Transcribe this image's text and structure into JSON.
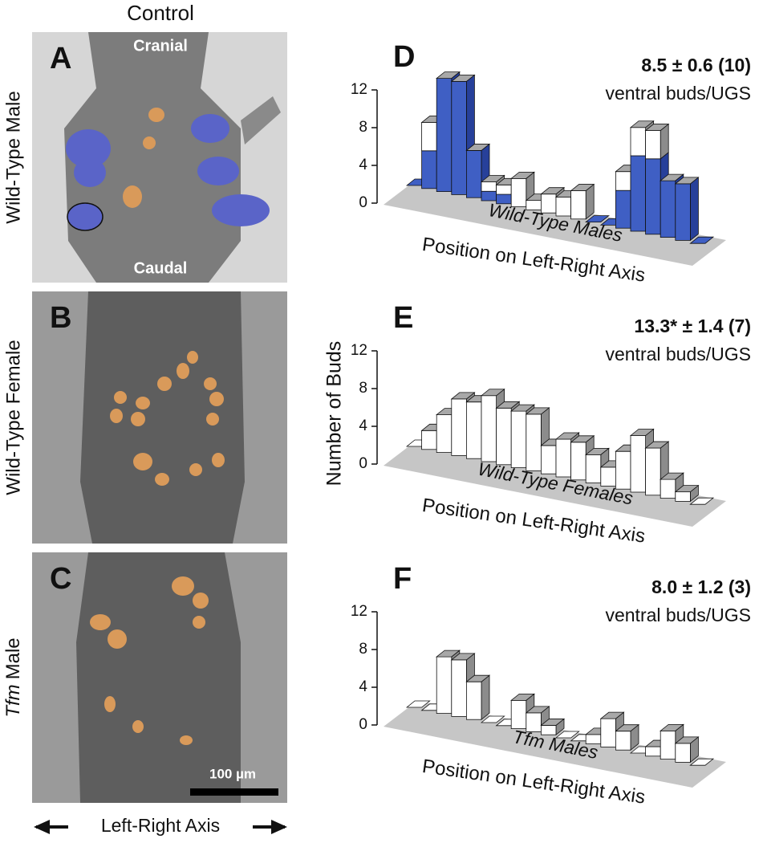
{
  "column_title": "Control",
  "image_panels": [
    {
      "letter": "A",
      "row_label": "Wild-Type Male",
      "top_label": "Cranial",
      "bottom_label": "Caudal"
    },
    {
      "letter": "B",
      "row_label": "Wild-Type Female"
    },
    {
      "letter": "C",
      "row_label_italic": "Tfm",
      "row_label": "Male",
      "scale_bar": "100 µm"
    }
  ],
  "axis_caption": "Left-Right Axis",
  "y_axis_label": "Number of Buds",
  "chart_data": [
    {
      "type": "bar",
      "letter": "D",
      "annotation": "8.5 ± 0.6 (10)",
      "annotation_note": "ventral buds/UGS",
      "floor_label": "Wild-Type Males",
      "x_label": "Position on Left-Right Axis",
      "ylim": [
        0,
        12
      ],
      "yticks": [
        0,
        4,
        8,
        12
      ],
      "series": [
        {
          "color": "#3f5fc4",
          "values": [
            0,
            4,
            12,
            12,
            5,
            1,
            1,
            0,
            0,
            0,
            0,
            0,
            0,
            0,
            4,
            8,
            8,
            6,
            6,
            0
          ]
        },
        {
          "color": "#ffffff",
          "values": [
            0,
            3,
            0,
            0,
            0,
            1,
            1,
            3,
            1,
            2,
            2,
            3,
            0,
            0,
            2,
            3,
            3,
            0,
            0,
            0
          ]
        }
      ]
    },
    {
      "type": "bar",
      "letter": "E",
      "annotation": "13.3* ± 1.4 (7)",
      "annotation_note": "ventral buds/UGS",
      "floor_label": "Wild-Type Females",
      "x_label": "Position on Left-Right Axis",
      "ylim": [
        0,
        12
      ],
      "yticks": [
        0,
        4,
        8,
        12
      ],
      "series": [
        {
          "color": "#ffffff",
          "values": [
            0,
            2,
            4,
            6,
            6,
            7,
            6,
            6,
            6,
            3,
            4,
            4,
            3,
            2,
            4,
            6,
            5,
            2,
            1,
            0
          ]
        }
      ]
    },
    {
      "type": "bar",
      "letter": "F",
      "annotation": "8.0 ± 1.2 (3)",
      "annotation_note": "ventral buds/UGS",
      "floor_label": "Tfm Males",
      "x_label": "Position on Left-Right Axis",
      "ylim": [
        0,
        12
      ],
      "yticks": [
        0,
        4,
        8,
        12
      ],
      "series": [
        {
          "color": "#ffffff",
          "values": [
            0,
            0,
            6,
            6,
            4,
            0,
            0,
            3,
            2,
            1,
            0,
            0,
            1,
            3,
            2,
            0,
            1,
            3,
            2,
            0
          ]
        }
      ]
    }
  ]
}
